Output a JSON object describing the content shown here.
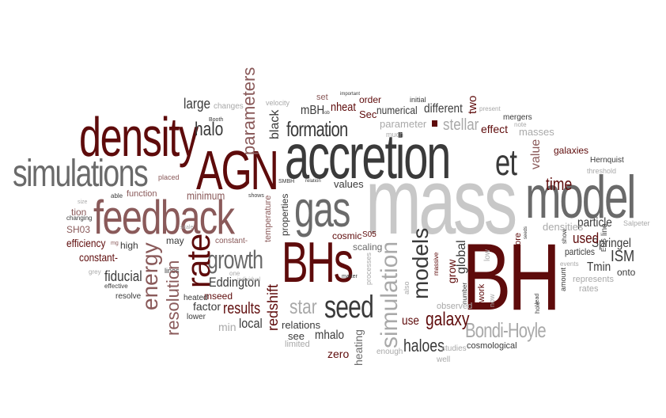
{
  "palette": {
    "dark_red": "#5e0b0b",
    "dark_gray": "#3a3a3a",
    "gray": "#6a6a6a",
    "light_gray": "#a9a9a9",
    "mauve": "#8a5a5a"
  },
  "words": {
    "mass": "mass",
    "bh": "BH",
    "accretion": "accretion",
    "model": "model",
    "density": "density",
    "agn": "AGN",
    "feedback": "feedback",
    "simulations": "simulations",
    "gas": "gas",
    "bhs": "BHs",
    "growth": "growth",
    "rate": "rate",
    "energy": "energy",
    "resolution": "resolution",
    "seed": "seed",
    "models": "models",
    "simulation": "simulation",
    "formation": "formation",
    "et": "et",
    "parameters": "parameters",
    "halo": "halo",
    "large": "large",
    "stellar": "stellar",
    "bondi_hoyle": "Bondi-Hoyle",
    "time": "time",
    "value": "value",
    "galaxy": "galaxy",
    "star": "star",
    "results": "results",
    "redshift": "redshift",
    "haloes": "haloes",
    "springel": "Springel",
    "ism": "ISM",
    "used": "used",
    "tmin": "Tmin",
    "particle": "particle",
    "particles": "particles",
    "galaxies": "galaxies",
    "eddington": "Eddington",
    "fiducial": "fiducial",
    "efficiency": "efficiency",
    "constant1": "constant-",
    "constant2": "constant-",
    "different": "different",
    "numerical": "numerical",
    "mbh": "mBH",
    "nheat": "nheat",
    "sec": "Sec",
    "order": "order",
    "two": "two",
    "effect": "effect",
    "masses": "masses",
    "parameter": "parameter",
    "black": "black",
    "properties": "properties",
    "function": "function",
    "minimum": "minimum",
    "local": "local",
    "min": "min",
    "factor": "factor",
    "mseed": "mseed",
    "relations": "relations",
    "mhalo": "mhalo",
    "zero": "zero",
    "heating": "heating",
    "use": "use",
    "global": "global",
    "grow": "grow",
    "values": "values",
    "cosmic": "cosmic",
    "s05": "S05",
    "scaling": "scaling",
    "cosmological": "cosmological",
    "observed": "observed",
    "work": "work",
    "now": "now",
    "low": "low",
    "densities": "densities",
    "hernquist": "Hernquist",
    "onto": "onto",
    "represents": "represents",
    "rates": "rates",
    "amount": "amount",
    "therefore": "therefore",
    "mergers": "mergers",
    "changes": "changes",
    "velocity": "velocity",
    "booth": "Booth",
    "placed": "placed",
    "able": "able",
    "tion": "tion",
    "sh03": "SH03",
    "high": "high",
    "mg": "mg",
    "grey": "grey",
    "effective": "effective",
    "resolve": "resolve",
    "heated": "heated",
    "lower": "lower",
    "one": "one",
    "may": "may",
    "lines": "lines",
    "scale": "scale",
    "temperature": "temperature",
    "smbh": "SMBH",
    "shows": "shows",
    "set": "set",
    "initial": "initial",
    "rates_small": "rates",
    "much": "much",
    "present": "present",
    "note": "note",
    "threshold": "threshold",
    "salpeter": "Salpeter",
    "see": "see",
    "limited": "limited",
    "enough": "enough",
    "well": "well",
    "studies": "studies",
    "processes": "processes",
    "also": "also",
    "massive": "massive",
    "number": "number",
    "events": "events",
    "lead": "lead",
    "hole": "hole",
    "show": "show",
    "line": "line",
    "eos": "EOS",
    "seeds": "seeds",
    "size": "size",
    "changing": "changing",
    "important": "important",
    "matter": "matter",
    "relation": "relation",
    "ob": "ob",
    "individual": "individual"
  }
}
